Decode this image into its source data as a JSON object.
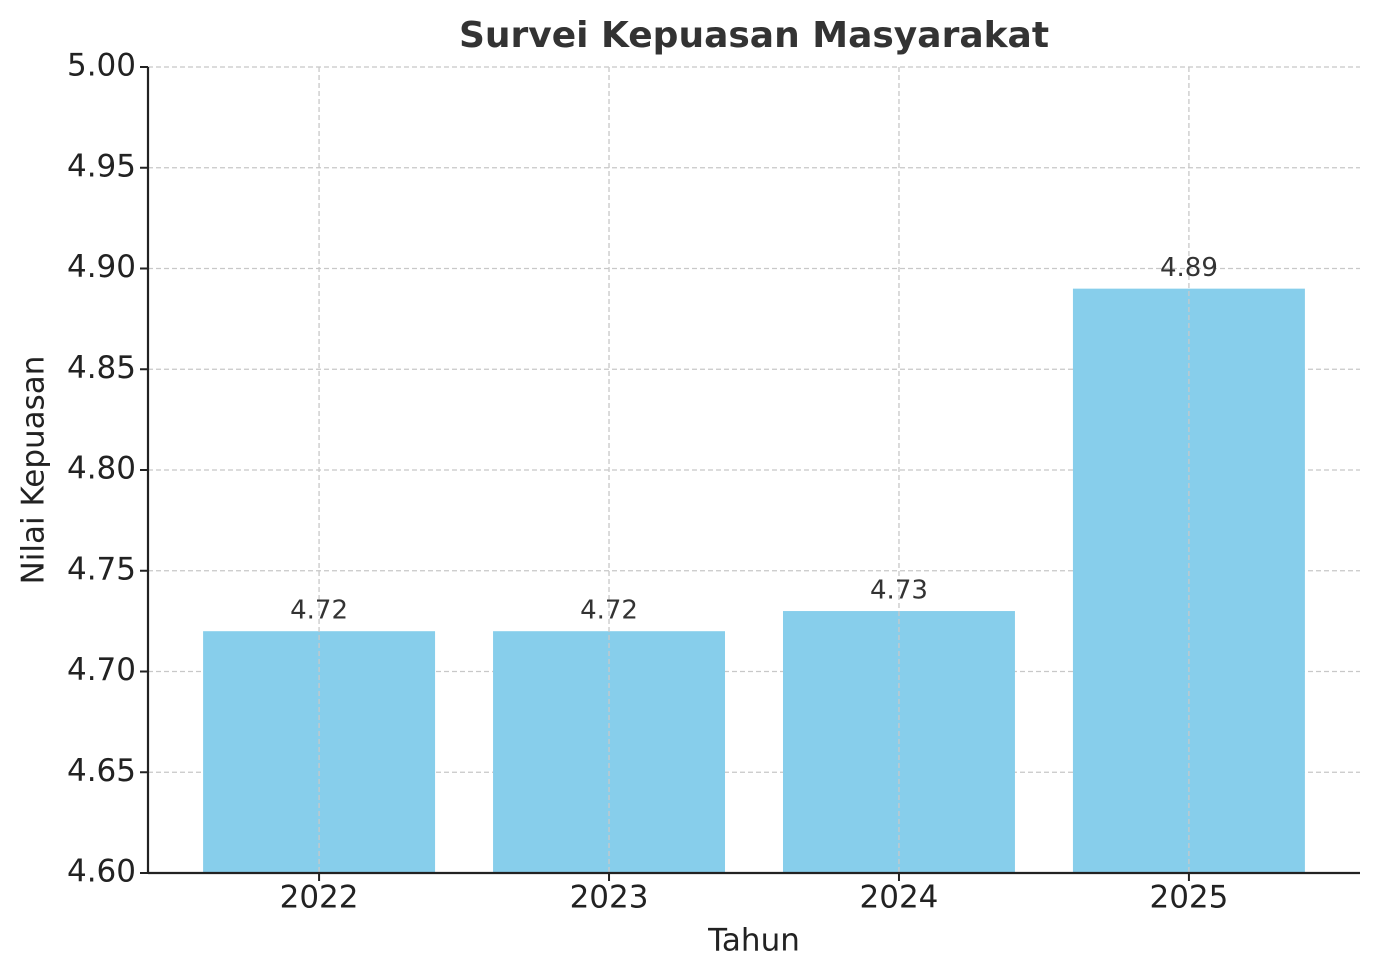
{
  "chart_data": {
    "type": "bar",
    "title": "Survei Kepuasan Masyarakat",
    "x_label": "Tahun",
    "y_label": "Nilai Kepuasan",
    "categories": [
      "2022",
      "2023",
      "2024",
      "2025"
    ],
    "values": [
      4.72,
      4.72,
      4.73,
      4.89
    ],
    "color": "#87ceeb",
    "ylim": [
      4.6,
      5.0
    ],
    "yticks": [
      {
        "value": 4.6,
        "label": "4.60"
      },
      {
        "value": 4.65,
        "label": "4.65"
      },
      {
        "value": 4.7,
        "label": "4.70"
      },
      {
        "value": 4.75,
        "label": "4.75"
      },
      {
        "value": 4.8,
        "label": "4.80"
      },
      {
        "value": 4.85,
        "label": "4.85"
      },
      {
        "value": 4.9,
        "label": "4.90"
      },
      {
        "value": 4.95,
        "label": "4.95"
      },
      {
        "value": 5.0,
        "label": "5.00"
      }
    ],
    "grid": true
  }
}
